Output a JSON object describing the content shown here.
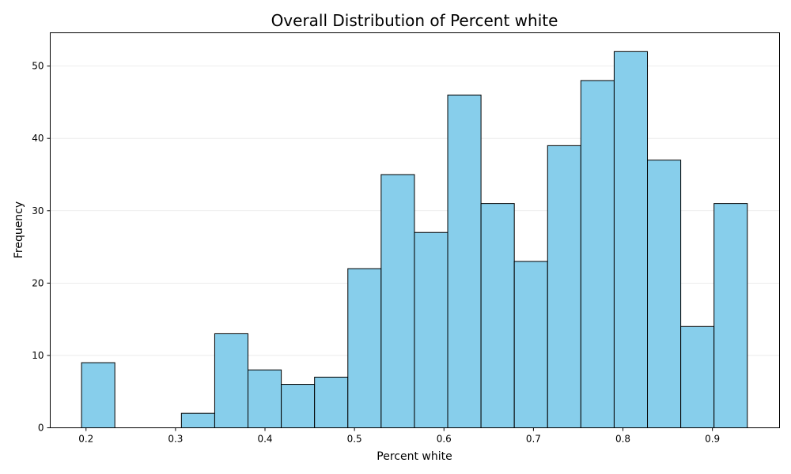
{
  "chart_data": {
    "type": "bar",
    "title": "Overall Distribution of Percent white",
    "xlabel": "Percent white",
    "ylabel": "Frequency",
    "xlim": [
      0.16,
      0.975
    ],
    "ylim": [
      0,
      54.6
    ],
    "xticks": [
      0.2,
      0.3,
      0.4,
      0.5,
      0.6,
      0.7,
      0.8,
      0.9
    ],
    "xtick_labels": [
      "0.2",
      "0.3",
      "0.4",
      "0.5",
      "0.6",
      "0.7",
      "0.8",
      "0.9"
    ],
    "yticks": [
      0,
      10,
      20,
      30,
      40,
      50
    ],
    "ytick_labels": [
      "0",
      "10",
      "20",
      "30",
      "40",
      "50"
    ],
    "grid": "y",
    "bar_color": "#87CEEB",
    "edge_color": "#000000",
    "bins": [
      {
        "x0": 0.195,
        "x1": 0.2322,
        "count": 9
      },
      {
        "x0": 0.2322,
        "x1": 0.2694,
        "count": 0
      },
      {
        "x0": 0.2694,
        "x1": 0.3066,
        "count": 0
      },
      {
        "x0": 0.3066,
        "x1": 0.3438,
        "count": 2
      },
      {
        "x0": 0.3438,
        "x1": 0.381,
        "count": 13
      },
      {
        "x0": 0.381,
        "x1": 0.4182,
        "count": 8
      },
      {
        "x0": 0.4182,
        "x1": 0.4554,
        "count": 6
      },
      {
        "x0": 0.4554,
        "x1": 0.4926,
        "count": 7
      },
      {
        "x0": 0.4926,
        "x1": 0.5298,
        "count": 22
      },
      {
        "x0": 0.5298,
        "x1": 0.567,
        "count": 35
      },
      {
        "x0": 0.567,
        "x1": 0.6042,
        "count": 27
      },
      {
        "x0": 0.6042,
        "x1": 0.6414,
        "count": 46
      },
      {
        "x0": 0.6414,
        "x1": 0.6786,
        "count": 31
      },
      {
        "x0": 0.6786,
        "x1": 0.7158,
        "count": 23
      },
      {
        "x0": 0.7158,
        "x1": 0.753,
        "count": 39
      },
      {
        "x0": 0.753,
        "x1": 0.7902,
        "count": 48
      },
      {
        "x0": 0.7902,
        "x1": 0.8274,
        "count": 52
      },
      {
        "x0": 0.8274,
        "x1": 0.8646,
        "count": 37
      },
      {
        "x0": 0.8646,
        "x1": 0.9018,
        "count": 14
      },
      {
        "x0": 0.9018,
        "x1": 0.939,
        "count": 31
      }
    ]
  }
}
